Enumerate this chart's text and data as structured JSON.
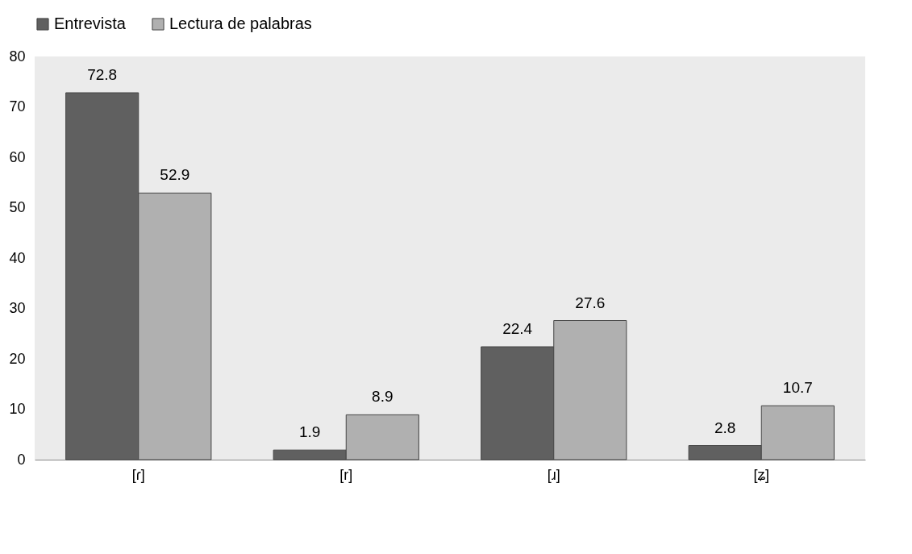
{
  "chart_data": {
    "type": "bar",
    "categories": [
      "[ɾ]",
      "[r]",
      "[ɹ]",
      "[ʑ]"
    ],
    "series": [
      {
        "name": "Entrevista",
        "color": "#606060",
        "values": [
          72.8,
          1.9,
          22.4,
          2.8
        ]
      },
      {
        "name": "Lectura de palabras",
        "color": "#b0b0b0",
        "values": [
          52.9,
          8.9,
          27.6,
          10.7
        ]
      }
    ],
    "ylim": [
      0,
      80
    ],
    "yticks": [
      0,
      10,
      20,
      30,
      40,
      50,
      60,
      70,
      80
    ],
    "grid": false,
    "legend": "top",
    "data_labels": true
  }
}
